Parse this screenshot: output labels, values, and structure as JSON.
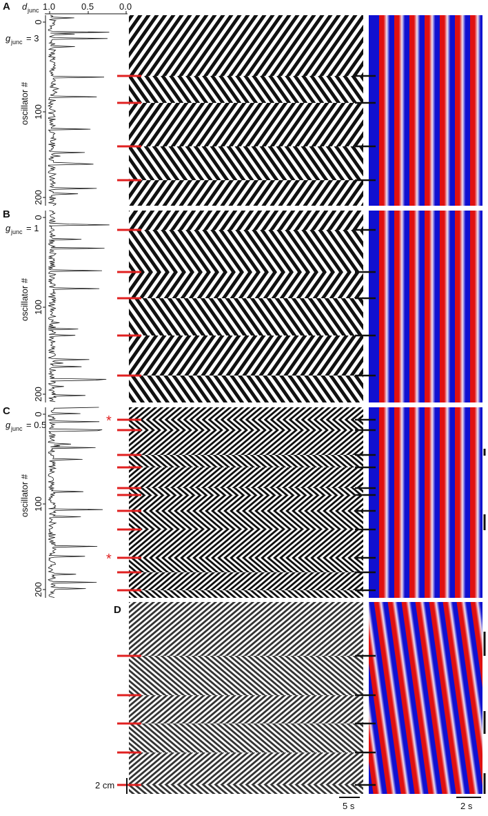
{
  "axis_top": {
    "symbol": "d",
    "subscript": "junc",
    "ticks": [
      "1.0",
      "0.5",
      "0.0"
    ]
  },
  "panels": [
    {
      "label": "A",
      "g_symbol": "g",
      "g_subscript": "junc",
      "g_value": "= 3",
      "y_label": "oscillator #",
      "y_ticks": [
        "0",
        "100",
        "200"
      ]
    },
    {
      "label": "B",
      "g_symbol": "g",
      "g_subscript": "junc",
      "g_value": "= 1",
      "y_label": "oscillator #",
      "y_ticks": [
        "0",
        "100",
        "200"
      ]
    },
    {
      "label": "C",
      "g_symbol": "g",
      "g_subscript": "junc",
      "g_value": "= 0.5",
      "y_label": "oscillator #",
      "y_ticks": [
        "0",
        "100",
        "200"
      ]
    },
    {
      "label": "D"
    }
  ],
  "asterisks": [
    "*",
    "*"
  ],
  "scale_bars": [
    "2 cm",
    "5 s",
    "2 s"
  ]
}
